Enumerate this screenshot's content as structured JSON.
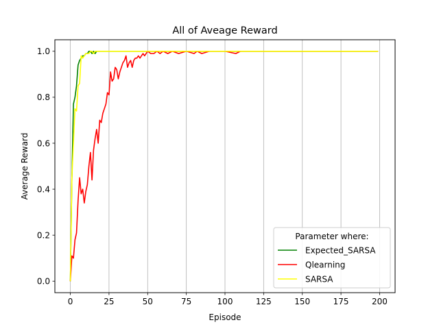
{
  "chart_data": {
    "type": "line",
    "title": "All of Aveage Reward",
    "xlabel": "Episode",
    "ylabel": "Average Reward",
    "xlim": [
      -10,
      210
    ],
    "ylim": [
      -0.05,
      1.05
    ],
    "xticks": [
      0,
      25,
      50,
      75,
      100,
      125,
      150,
      175,
      200
    ],
    "yticks": [
      0.0,
      0.2,
      0.4,
      0.6,
      0.8,
      1.0
    ],
    "xtick_labels": [
      "0",
      "25",
      "50",
      "75",
      "100",
      "125",
      "150",
      "175",
      "200"
    ],
    "ytick_labels": [
      "0.0",
      "0.2",
      "0.4",
      "0.6",
      "0.8",
      "1.0"
    ],
    "grid": "vertical",
    "legend": {
      "title": "Parameter where:",
      "placement": "lower-right"
    },
    "series": [
      {
        "name": "Expected_SARSA",
        "color": "#008000",
        "x": [
          0,
          1,
          2,
          3,
          4,
          5,
          6,
          7,
          8,
          9,
          10,
          11,
          12,
          13,
          14,
          15,
          16,
          17,
          18,
          19,
          20,
          25,
          50,
          75,
          100,
          125,
          150,
          175,
          199
        ],
        "y": [
          0.0,
          0.45,
          0.77,
          0.8,
          0.85,
          0.94,
          0.96,
          0.97,
          0.98,
          0.98,
          0.99,
          0.99,
          1.0,
          1.0,
          0.99,
          1.0,
          0.99,
          1.0,
          1.0,
          1.0,
          1.0,
          1.0,
          1.0,
          1.0,
          1.0,
          1.0,
          1.0,
          1.0,
          1.0
        ]
      },
      {
        "name": "Qlearning",
        "color": "#ff0000",
        "x": [
          0,
          1,
          2,
          3,
          4,
          5,
          6,
          7,
          8,
          9,
          10,
          11,
          12,
          13,
          14,
          15,
          16,
          17,
          18,
          19,
          20,
          21,
          22,
          23,
          24,
          25,
          26,
          27,
          28,
          29,
          30,
          31,
          32,
          33,
          34,
          35,
          36,
          37,
          38,
          39,
          40,
          41,
          42,
          43,
          44,
          45,
          46,
          47,
          48,
          49,
          50,
          52,
          54,
          56,
          58,
          60,
          63,
          66,
          70,
          75,
          80,
          82,
          85,
          90,
          100,
          107,
          110,
          125,
          150,
          175,
          199
        ],
        "y": [
          0.0,
          0.11,
          0.1,
          0.18,
          0.21,
          0.35,
          0.45,
          0.38,
          0.4,
          0.34,
          0.39,
          0.42,
          0.5,
          0.56,
          0.44,
          0.57,
          0.62,
          0.66,
          0.6,
          0.7,
          0.69,
          0.73,
          0.75,
          0.77,
          0.82,
          0.81,
          0.91,
          0.87,
          0.88,
          0.93,
          0.92,
          0.88,
          0.91,
          0.93,
          0.95,
          0.96,
          0.98,
          0.93,
          0.95,
          0.96,
          0.93,
          0.96,
          0.97,
          0.97,
          0.98,
          0.97,
          0.98,
          0.99,
          0.98,
          0.99,
          1.0,
          0.99,
          0.99,
          1.0,
          0.99,
          1.0,
          0.99,
          1.0,
          0.99,
          1.0,
          0.99,
          1.0,
          0.99,
          1.0,
          1.0,
          0.99,
          1.0,
          1.0,
          1.0,
          1.0,
          1.0
        ]
      },
      {
        "name": "SARSA",
        "color": "#ffff00",
        "x": [
          0,
          1,
          2,
          3,
          4,
          5,
          6,
          7,
          8,
          9,
          10,
          11,
          12,
          13,
          14,
          15,
          16,
          17,
          18,
          19,
          20,
          25,
          50,
          75,
          100,
          125,
          150,
          175,
          199
        ],
        "y": [
          0.0,
          0.45,
          0.6,
          0.75,
          0.74,
          0.85,
          0.86,
          0.98,
          0.97,
          0.98,
          0.99,
          0.99,
          0.99,
          1.0,
          1.0,
          0.99,
          1.0,
          1.0,
          1.0,
          1.0,
          1.0,
          1.0,
          1.0,
          1.0,
          1.0,
          1.0,
          1.0,
          1.0,
          1.0
        ]
      }
    ]
  }
}
